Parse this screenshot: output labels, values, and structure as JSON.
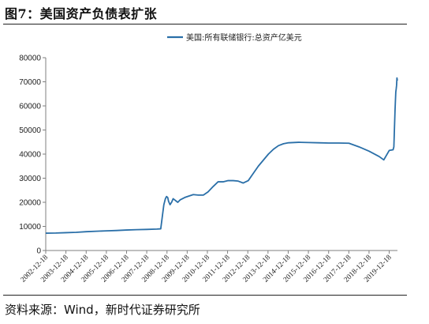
{
  "figure": {
    "title": "图7：美国资产负债表扩张",
    "source": "资料来源：Wind，新时代证券研究所"
  },
  "colors": {
    "series": "#2a6fa8",
    "axis": "#7f7f7f"
  },
  "chart_data": {
    "type": "line",
    "title": "",
    "xlabel": "",
    "ylabel": "",
    "ylim": [
      0,
      80000
    ],
    "yticks": [
      "0",
      "10000",
      "20000",
      "30000",
      "40000",
      "50000",
      "60000",
      "70000",
      "80000"
    ],
    "xticks": [
      "2002-12-18",
      "2003-12-18",
      "2004-12-18",
      "2005-12-18",
      "2006-12-18",
      "2007-12-18",
      "2008-12-18",
      "2009-12-18",
      "2010-12-18",
      "2011-12-18",
      "2012-12-18",
      "2013-12-18",
      "2014-12-18",
      "2015-12-18",
      "2016-12-18",
      "2017-12-18",
      "2018-12-18",
      "2019-12-18"
    ],
    "xlim": [
      "2002-12-18",
      "2020-05-15"
    ],
    "legend": {
      "position": "top-left"
    },
    "grid": false,
    "series": [
      {
        "name": "美国:所有联储银行:总资产亿美元",
        "points": [
          [
            "2002-12-18",
            7200
          ],
          [
            "2003-06-18",
            7250
          ],
          [
            "2003-12-18",
            7400
          ],
          [
            "2004-06-18",
            7550
          ],
          [
            "2004-12-18",
            7800
          ],
          [
            "2005-06-18",
            8000
          ],
          [
            "2005-12-18",
            8150
          ],
          [
            "2006-06-18",
            8300
          ],
          [
            "2006-12-18",
            8500
          ],
          [
            "2007-06-18",
            8650
          ],
          [
            "2007-12-18",
            8750
          ],
          [
            "2008-06-18",
            8900
          ],
          [
            "2008-08-27",
            9000
          ],
          [
            "2008-09-24",
            14000
          ],
          [
            "2008-10-22",
            19000
          ],
          [
            "2008-11-19",
            21500
          ],
          [
            "2008-12-10",
            22400
          ],
          [
            "2008-12-31",
            22000
          ],
          [
            "2009-01-14",
            20500
          ],
          [
            "2009-02-11",
            19000
          ],
          [
            "2009-03-11",
            20000
          ],
          [
            "2009-04-08",
            21500
          ],
          [
            "2009-05-06",
            21000
          ],
          [
            "2009-06-03",
            20500
          ],
          [
            "2009-07-01",
            20000
          ],
          [
            "2009-08-12",
            21000
          ],
          [
            "2009-09-23",
            21500
          ],
          [
            "2009-11-04",
            22000
          ],
          [
            "2010-01-06",
            22500
          ],
          [
            "2010-04-07",
            23200
          ],
          [
            "2010-07-07",
            23000
          ],
          [
            "2010-10-06",
            23000
          ],
          [
            "2010-12-29",
            24300
          ],
          [
            "2011-03-30",
            26500
          ],
          [
            "2011-06-29",
            28500
          ],
          [
            "2011-09-28",
            28500
          ],
          [
            "2011-12-28",
            29000
          ],
          [
            "2012-03-28",
            29000
          ],
          [
            "2012-06-27",
            28800
          ],
          [
            "2012-09-26",
            28000
          ],
          [
            "2012-12-26",
            29000
          ],
          [
            "2013-03-27",
            32000
          ],
          [
            "2013-06-26",
            35000
          ],
          [
            "2013-09-25",
            37500
          ],
          [
            "2013-12-25",
            40000
          ],
          [
            "2014-03-26",
            42000
          ],
          [
            "2014-06-25",
            43500
          ],
          [
            "2014-09-24",
            44300
          ],
          [
            "2014-12-24",
            44700
          ],
          [
            "2015-06-24",
            44900
          ],
          [
            "2015-12-23",
            44800
          ],
          [
            "2016-06-22",
            44700
          ],
          [
            "2016-12-21",
            44600
          ],
          [
            "2017-06-21",
            44600
          ],
          [
            "2017-12-20",
            44500
          ],
          [
            "2018-06-20",
            43000
          ],
          [
            "2018-12-19",
            41200
          ],
          [
            "2019-06-19",
            39000
          ],
          [
            "2019-09-11",
            37600
          ],
          [
            "2019-10-16",
            39000
          ],
          [
            "2019-12-18",
            41500
          ],
          [
            "2020-02-26",
            41800
          ],
          [
            "2020-03-11",
            43000
          ],
          [
            "2020-03-18",
            48000
          ],
          [
            "2020-03-25",
            53000
          ],
          [
            "2020-04-01",
            58000
          ],
          [
            "2020-04-08",
            62000
          ],
          [
            "2020-04-15",
            65800
          ],
          [
            "2020-04-22",
            67000
          ],
          [
            "2020-04-29",
            68500
          ],
          [
            "2020-05-06",
            71600
          ],
          [
            "2020-05-13",
            70500
          ]
        ]
      }
    ]
  }
}
